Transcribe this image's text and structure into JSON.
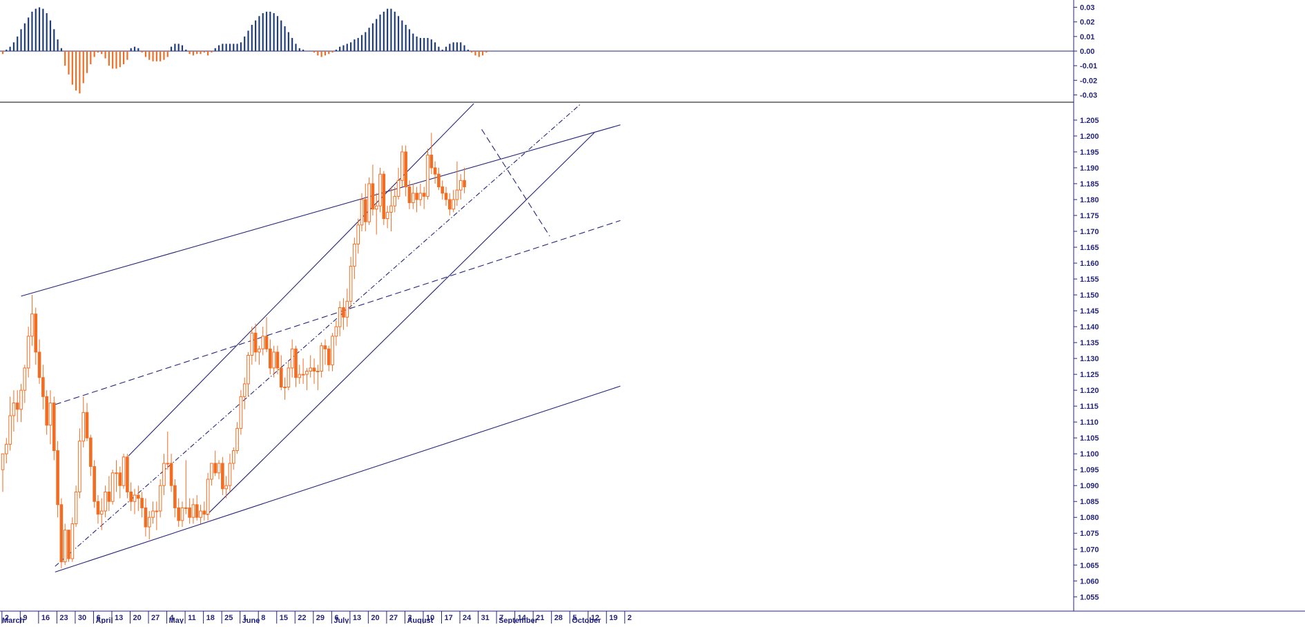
{
  "colors": {
    "background": "#ffffff",
    "axis": "#23237a",
    "trendline": "#23237a",
    "candle_body": "#f26d22",
    "hist_positive": "#1f3d7a",
    "hist_negative": "#f26d22"
  },
  "chart_data": [
    {
      "type": "bar",
      "panel": "oscillator-histogram",
      "title": "",
      "ylim": [
        -0.035,
        0.035
      ],
      "y_ticks": [
        "0.03",
        "0.02",
        "0.01",
        "0.00",
        "-0.01",
        "-0.02",
        "-0.03"
      ],
      "x_start_date": "2017-03-01",
      "values": [
        -0.002,
        0.001,
        0.003,
        0.006,
        0.01,
        0.015,
        0.019,
        0.023,
        0.027,
        0.029,
        0.03,
        0.029,
        0.026,
        0.021,
        0.015,
        0.008,
        0.002,
        -0.01,
        -0.016,
        -0.023,
        -0.027,
        -0.029,
        -0.022,
        -0.015,
        -0.009,
        -0.004,
        -0.001,
        -0.002,
        -0.005,
        -0.01,
        -0.012,
        -0.012,
        -0.011,
        -0.009,
        -0.006,
        0.002,
        0.003,
        0.002,
        -0.001,
        -0.004,
        -0.006,
        -0.007,
        -0.007,
        -0.007,
        -0.006,
        -0.004,
        0.003,
        0.005,
        0.005,
        0.004,
        0.001,
        -0.002,
        -0.003,
        -0.002,
        -0.002,
        -0.001,
        -0.003,
        -0.001,
        0.002,
        0.004,
        0.005,
        0.005,
        0.005,
        0.005,
        0.005,
        0.006,
        0.01,
        0.014,
        0.018,
        0.021,
        0.024,
        0.026,
        0.027,
        0.027,
        0.026,
        0.024,
        0.021,
        0.017,
        0.013,
        0.009,
        0.005,
        0.002,
        0.001,
        0.0,
        0.0,
        -0.001,
        -0.003,
        -0.004,
        -0.003,
        -0.002,
        -0.001,
        0.001,
        0.003,
        0.004,
        0.005,
        0.006,
        0.008,
        0.009,
        0.011,
        0.013,
        0.016,
        0.019,
        0.022,
        0.025,
        0.027,
        0.029,
        0.029,
        0.027,
        0.024,
        0.021,
        0.018,
        0.015,
        0.012,
        0.01,
        0.009,
        0.009,
        0.009,
        0.008,
        0.006,
        0.003,
        0.001,
        0.003,
        0.005,
        0.006,
        0.006,
        0.006,
        0.004,
        0.001,
        -0.001,
        -0.003,
        -0.004,
        -0.003,
        -0.001
      ]
    },
    {
      "type": "candlestick",
      "panel": "price",
      "title": "",
      "ylim": [
        1.0505,
        1.2102
      ],
      "y_ticks": [
        "1.205",
        "1.200",
        "1.195",
        "1.190",
        "1.185",
        "1.180",
        "1.175",
        "1.170",
        "1.165",
        "1.160",
        "1.155",
        "1.150",
        "1.145",
        "1.140",
        "1.135",
        "1.130",
        "1.125",
        "1.120",
        "1.115",
        "1.110",
        "1.105",
        "1.100",
        "1.095",
        "1.090",
        "1.085",
        "1.080",
        "1.075",
        "1.070",
        "1.065",
        "1.060",
        "1.055"
      ],
      "x_tick_labels": [
        "2",
        "9",
        "16",
        "23",
        "30",
        "6",
        "13",
        "20",
        "27",
        "4",
        "11",
        "18",
        "25",
        "1",
        "8",
        "15",
        "22",
        "29",
        "6",
        "13",
        "20",
        "27",
        "3",
        "10",
        "17",
        "24",
        "31",
        "7",
        "14",
        "21",
        "28",
        "5",
        "12",
        "19",
        "2"
      ],
      "month_labels": [
        {
          "label": "March",
          "tick": 0
        },
        {
          "label": "April",
          "tick": 5
        },
        {
          "label": "May",
          "tick": 9
        },
        {
          "label": "June",
          "tick": 13
        },
        {
          "label": "July",
          "tick": 18
        },
        {
          "label": "August",
          "tick": 22
        },
        {
          "label": "September",
          "tick": 27
        },
        {
          "label": "October",
          "tick": 31
        }
      ],
      "x_start_date": "2017-03-01",
      "ohlc": [
        [
          1.095,
          1.1,
          1.088,
          1.1
        ],
        [
          1.1,
          1.105,
          1.097,
          1.103
        ],
        [
          1.103,
          1.118,
          1.101,
          1.112
        ],
        [
          1.112,
          1.12,
          1.107,
          1.116
        ],
        [
          1.116,
          1.12,
          1.11,
          1.114
        ],
        [
          1.114,
          1.122,
          1.11,
          1.12
        ],
        [
          1.12,
          1.128,
          1.116,
          1.127
        ],
        [
          1.127,
          1.14,
          1.124,
          1.137
        ],
        [
          1.137,
          1.15,
          1.134,
          1.144
        ],
        [
          1.144,
          1.146,
          1.128,
          1.132
        ],
        [
          1.132,
          1.136,
          1.122,
          1.124
        ],
        [
          1.124,
          1.128,
          1.114,
          1.118
        ],
        [
          1.118,
          1.12,
          1.106,
          1.109
        ],
        [
          1.109,
          1.12,
          1.103,
          1.116
        ],
        [
          1.116,
          1.118,
          1.098,
          1.101
        ],
        [
          1.101,
          1.104,
          1.08,
          1.084
        ],
        [
          1.084,
          1.086,
          1.064,
          1.066
        ],
        [
          1.066,
          1.078,
          1.065,
          1.076
        ],
        [
          1.076,
          1.076,
          1.066,
          1.067
        ],
        [
          1.067,
          1.08,
          1.066,
          1.078
        ],
        [
          1.078,
          1.09,
          1.077,
          1.088
        ],
        [
          1.088,
          1.108,
          1.086,
          1.104
        ],
        [
          1.104,
          1.118,
          1.102,
          1.113
        ],
        [
          1.113,
          1.116,
          1.104,
          1.105
        ],
        [
          1.105,
          1.106,
          1.093,
          1.096
        ],
        [
          1.096,
          1.098,
          1.083,
          1.085
        ],
        [
          1.085,
          1.087,
          1.078,
          1.081
        ],
        [
          1.081,
          1.086,
          1.076,
          1.082
        ],
        [
          1.082,
          1.09,
          1.08,
          1.088
        ],
        [
          1.088,
          1.093,
          1.082,
          1.085
        ],
        [
          1.085,
          1.095,
          1.084,
          1.094
        ],
        [
          1.094,
          1.098,
          1.088,
          1.094
        ],
        [
          1.094,
          1.096,
          1.086,
          1.09
        ],
        [
          1.09,
          1.1,
          1.089,
          1.099
        ],
        [
          1.099,
          1.1,
          1.086,
          1.088
        ],
        [
          1.088,
          1.091,
          1.082,
          1.085
        ],
        [
          1.085,
          1.089,
          1.081,
          1.087
        ],
        [
          1.087,
          1.09,
          1.082,
          1.086
        ],
        [
          1.086,
          1.088,
          1.08,
          1.083
        ],
        [
          1.083,
          1.086,
          1.074,
          1.077
        ],
        [
          1.077,
          1.082,
          1.073,
          1.08
        ],
        [
          1.08,
          1.085,
          1.078,
          1.082
        ],
        [
          1.082,
          1.085,
          1.076,
          1.082
        ],
        [
          1.082,
          1.092,
          1.08,
          1.09
        ],
        [
          1.09,
          1.1,
          1.087,
          1.097
        ],
        [
          1.097,
          1.107,
          1.095,
          1.097
        ],
        [
          1.097,
          1.1,
          1.088,
          1.09
        ],
        [
          1.09,
          1.092,
          1.08,
          1.083
        ],
        [
          1.083,
          1.086,
          1.077,
          1.079
        ],
        [
          1.079,
          1.085,
          1.077,
          1.083
        ],
        [
          1.083,
          1.098,
          1.081,
          1.083
        ],
        [
          1.083,
          1.086,
          1.078,
          1.08
        ],
        [
          1.08,
          1.086,
          1.078,
          1.084
        ],
        [
          1.084,
          1.087,
          1.079,
          1.08
        ],
        [
          1.08,
          1.084,
          1.078,
          1.082
        ],
        [
          1.082,
          1.085,
          1.079,
          1.081
        ],
        [
          1.081,
          1.094,
          1.079,
          1.092
        ],
        [
          1.092,
          1.097,
          1.09,
          1.097
        ],
        [
          1.097,
          1.101,
          1.093,
          1.094
        ],
        [
          1.094,
          1.098,
          1.092,
          1.097
        ],
        [
          1.097,
          1.099,
          1.087,
          1.089
        ],
        [
          1.089,
          1.093,
          1.086,
          1.09
        ],
        [
          1.09,
          1.1,
          1.088,
          1.097
        ],
        [
          1.097,
          1.102,
          1.095,
          1.101
        ],
        [
          1.101,
          1.11,
          1.1,
          1.108
        ],
        [
          1.108,
          1.12,
          1.106,
          1.118
        ],
        [
          1.118,
          1.124,
          1.114,
          1.122
        ],
        [
          1.122,
          1.132,
          1.118,
          1.131
        ],
        [
          1.131,
          1.14,
          1.128,
          1.138
        ],
        [
          1.138,
          1.141,
          1.129,
          1.132
        ],
        [
          1.132,
          1.134,
          1.128,
          1.133
        ],
        [
          1.133,
          1.14,
          1.131,
          1.137
        ],
        [
          1.137,
          1.143,
          1.132,
          1.133
        ],
        [
          1.133,
          1.136,
          1.125,
          1.127
        ],
        [
          1.127,
          1.134,
          1.124,
          1.132
        ],
        [
          1.132,
          1.134,
          1.125,
          1.127
        ],
        [
          1.127,
          1.131,
          1.12,
          1.121
        ],
        [
          1.121,
          1.124,
          1.117,
          1.121
        ],
        [
          1.121,
          1.129,
          1.12,
          1.127
        ],
        [
          1.127,
          1.136,
          1.124,
          1.133
        ],
        [
          1.133,
          1.134,
          1.121,
          1.124
        ],
        [
          1.124,
          1.128,
          1.122,
          1.125
        ],
        [
          1.125,
          1.13,
          1.122,
          1.125
        ],
        [
          1.125,
          1.127,
          1.12,
          1.126
        ],
        [
          1.126,
          1.131,
          1.124,
          1.127
        ],
        [
          1.127,
          1.13,
          1.122,
          1.126
        ],
        [
          1.126,
          1.128,
          1.12,
          1.126
        ],
        [
          1.126,
          1.135,
          1.124,
          1.134
        ],
        [
          1.134,
          1.136,
          1.128,
          1.133
        ],
        [
          1.133,
          1.134,
          1.126,
          1.128
        ],
        [
          1.128,
          1.138,
          1.126,
          1.137
        ],
        [
          1.137,
          1.142,
          1.134,
          1.14
        ],
        [
          1.14,
          1.148,
          1.137,
          1.146
        ],
        [
          1.146,
          1.149,
          1.139,
          1.143
        ],
        [
          1.143,
          1.152,
          1.14,
          1.148
        ],
        [
          1.148,
          1.162,
          1.146,
          1.159
        ],
        [
          1.159,
          1.168,
          1.155,
          1.166
        ],
        [
          1.166,
          1.174,
          1.163,
          1.172
        ],
        [
          1.172,
          1.182,
          1.17,
          1.18
        ],
        [
          1.18,
          1.185,
          1.17,
          1.173
        ],
        [
          1.173,
          1.187,
          1.172,
          1.185
        ],
        [
          1.185,
          1.191,
          1.175,
          1.177
        ],
        [
          1.177,
          1.182,
          1.169,
          1.178
        ],
        [
          1.178,
          1.19,
          1.176,
          1.188
        ],
        [
          1.188,
          1.189,
          1.172,
          1.174
        ],
        [
          1.174,
          1.178,
          1.171,
          1.176
        ],
        [
          1.176,
          1.184,
          1.17,
          1.178
        ],
        [
          1.178,
          1.184,
          1.176,
          1.181
        ],
        [
          1.181,
          1.19,
          1.18,
          1.186
        ],
        [
          1.186,
          1.197,
          1.184,
          1.195
        ],
        [
          1.195,
          1.197,
          1.181,
          1.184
        ],
        [
          1.184,
          1.186,
          1.177,
          1.179
        ],
        [
          1.179,
          1.185,
          1.177,
          1.182
        ],
        [
          1.182,
          1.184,
          1.176,
          1.18
        ],
        [
          1.18,
          1.185,
          1.178,
          1.182
        ],
        [
          1.182,
          1.184,
          1.177,
          1.181
        ],
        [
          1.181,
          1.196,
          1.18,
          1.194
        ],
        [
          1.194,
          1.201,
          1.188,
          1.19
        ],
        [
          1.19,
          1.192,
          1.185,
          1.188
        ],
        [
          1.188,
          1.19,
          1.183,
          1.184
        ],
        [
          1.184,
          1.186,
          1.18,
          1.182
        ],
        [
          1.182,
          1.184,
          1.178,
          1.18
        ],
        [
          1.18,
          1.182,
          1.175,
          1.177
        ],
        [
          1.177,
          1.183,
          1.176,
          1.18
        ],
        [
          1.18,
          1.192,
          1.178,
          1.183
        ],
        [
          1.183,
          1.188,
          1.18,
          1.186
        ],
        [
          1.186,
          1.19,
          1.182,
          1.184
        ]
      ],
      "trendlines": [
        {
          "style": "solid",
          "points": [
            [
              "2017-03-08",
              1.1496
            ],
            [
              "2017-10-23",
              1.2035
            ]
          ]
        },
        {
          "style": "solid",
          "points": [
            [
              "2017-03-21",
              1.0628
            ],
            [
              "2017-10-23",
              1.1213
            ]
          ]
        },
        {
          "style": "solid",
          "points": [
            [
              "2017-04-18",
              1.0993
            ],
            [
              "2017-08-28",
              1.2102
            ]
          ]
        },
        {
          "style": "solid",
          "points": [
            [
              "2017-05-18",
              1.0808
            ],
            [
              "2017-10-13",
              1.201
            ]
          ]
        },
        {
          "style": "dashdot",
          "points": [
            [
              "2017-03-21",
              1.0646
            ],
            [
              "2017-10-08",
              1.2102
            ]
          ]
        },
        {
          "style": "dashed",
          "points": [
            [
              "2017-03-21",
              1.1155
            ],
            [
              "2017-10-23",
              1.1734
            ]
          ]
        },
        {
          "style": "dashed",
          "points": [
            [
              "2017-08-31",
              1.2021
            ],
            [
              "2017-09-26",
              1.1685
            ]
          ]
        }
      ]
    }
  ]
}
